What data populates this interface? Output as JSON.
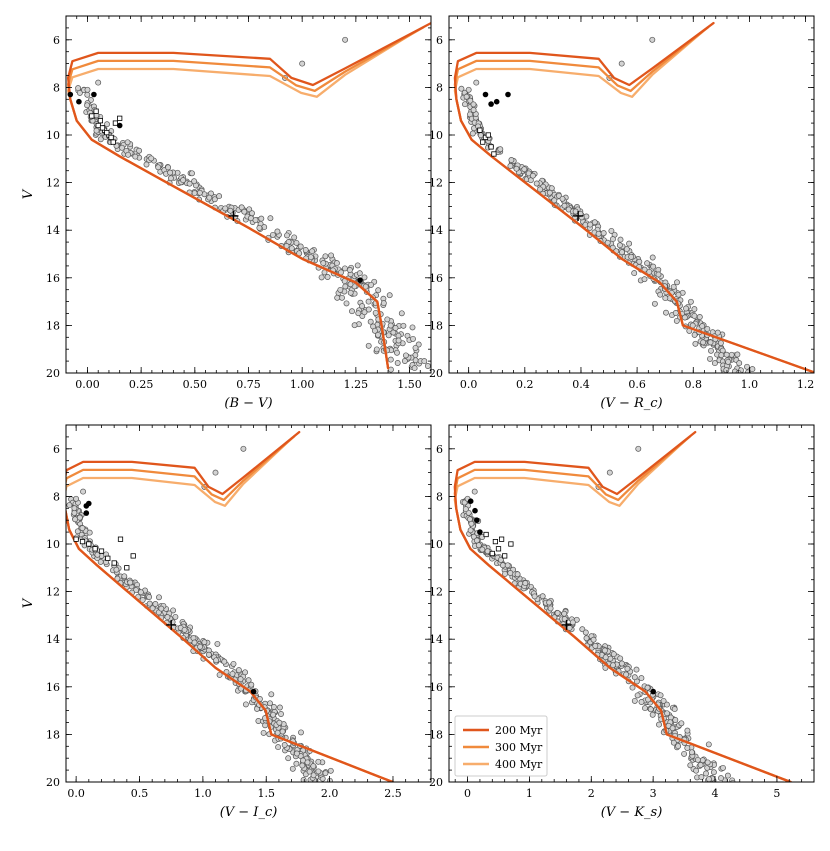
{
  "figure": {
    "colors": {
      "200": "#e0561c",
      "300": "#f08a3c",
      "400": "#f7ad6c"
    },
    "legend": [
      {
        "label": "200 Myr",
        "color": "#e0561c"
      },
      {
        "label": "300 Myr",
        "color": "#f08a3c"
      },
      {
        "label": "400 Myr",
        "color": "#f7ad6c"
      }
    ]
  },
  "chart_data": [
    {
      "type": "scatter",
      "xlabel": "(B − V)",
      "ylabel": "V",
      "xlim": [
        -0.1,
        1.6
      ],
      "ylim": [
        20,
        5
      ],
      "xticks": [
        "0.00",
        "0.25",
        "0.50",
        "0.75",
        "1.00",
        "1.25",
        "1.50"
      ],
      "xtick_values": [
        0,
        0.25,
        0.5,
        0.75,
        1.0,
        1.25,
        1.5
      ],
      "yticks": [
        "6",
        "8",
        "10",
        "12",
        "14",
        "16",
        "18",
        "20"
      ],
      "yend": 19.8,
      "ybend": 0.1,
      "xscale": 1.0,
      "squares": [
        [
          0.02,
          9.2
        ],
        [
          0.05,
          9.6
        ],
        [
          0.08,
          9.8
        ],
        [
          0.1,
          10.0
        ],
        [
          0.12,
          10.3
        ],
        [
          0.06,
          9.4
        ],
        [
          0.09,
          9.9
        ],
        [
          0.13,
          9.5
        ],
        [
          0.11,
          10.1
        ],
        [
          0.07,
          9.7
        ],
        [
          0.15,
          9.3
        ],
        [
          0.04,
          9.0
        ]
      ],
      "dots": [
        [
          -0.08,
          8.3
        ],
        [
          -0.04,
          8.6
        ],
        [
          0.03,
          8.3
        ],
        [
          0.15,
          9.6
        ],
        [
          1.27,
          16.1
        ]
      ],
      "plus": [
        0.68,
        13.4
      ]
    },
    {
      "type": "scatter",
      "xlabel": "(V − R_c)",
      "ylabel": "",
      "xlim": [
        -0.07,
        1.23
      ],
      "ylim": [
        20,
        5
      ],
      "xticks": [
        "0.0",
        "0.2",
        "0.4",
        "0.6",
        "0.8",
        "1.0",
        "1.2"
      ],
      "xtick_values": [
        0,
        0.2,
        0.4,
        0.6,
        0.8,
        1.0,
        1.2
      ],
      "yticks": [
        "6",
        "8",
        "10",
        "12",
        "14",
        "16",
        "18",
        "20"
      ],
      "yend": 20.0,
      "ybend": 0.0,
      "xscale": 0.545,
      "squares": [
        [
          0.04,
          9.8
        ],
        [
          0.06,
          10.1
        ],
        [
          0.08,
          10.5
        ],
        [
          0.09,
          10.8
        ],
        [
          0.05,
          10.3
        ],
        [
          0.07,
          10.0
        ]
      ],
      "dots": [
        [
          0.06,
          8.3
        ],
        [
          0.08,
          8.7
        ],
        [
          0.1,
          8.6
        ],
        [
          0.14,
          8.3
        ]
      ],
      "plus": [
        0.39,
        13.4
      ]
    },
    {
      "type": "scatter",
      "xlabel": "(V − I_c)",
      "ylabel": "V",
      "xlim": [
        -0.08,
        2.8
      ],
      "ylim": [
        20,
        5
      ],
      "xticks": [
        "0.0",
        "0.5",
        "1.0",
        "1.5",
        "2.0",
        "2.5"
      ],
      "xtick_values": [
        0,
        0.5,
        1.0,
        1.5,
        2.0,
        2.5
      ],
      "yticks": [
        "6",
        "8",
        "10",
        "12",
        "14",
        "16",
        "18",
        "20"
      ],
      "yend": 20.0,
      "ybend": 0.0,
      "xscale": 1.1,
      "squares": [
        [
          0.0,
          9.8
        ],
        [
          0.1,
          10.0
        ],
        [
          0.2,
          10.3
        ],
        [
          0.3,
          10.8
        ],
        [
          0.15,
          10.2
        ],
        [
          0.4,
          11.0
        ],
        [
          0.35,
          9.8
        ],
        [
          0.25,
          10.6
        ],
        [
          0.05,
          9.9
        ],
        [
          0.45,
          10.5
        ]
      ],
      "dots": [
        [
          0.08,
          8.4
        ],
        [
          0.1,
          8.3
        ],
        [
          0.08,
          8.7
        ],
        [
          1.4,
          16.2
        ]
      ],
      "plus": [
        0.75,
        13.4
      ]
    },
    {
      "type": "scatter",
      "xlabel": "(V − K_s)",
      "ylabel": "",
      "xlim": [
        -0.3,
        5.6
      ],
      "ylim": [
        20,
        5
      ],
      "xticks": [
        "0",
        "1",
        "2",
        "3",
        "4",
        "5"
      ],
      "xtick_values": [
        0,
        1,
        2,
        3,
        4,
        5
      ],
      "yticks": [
        "6",
        "8",
        "10",
        "12",
        "14",
        "16",
        "18",
        "20"
      ],
      "yend": 20.0,
      "ybend": 0.0,
      "xscale": 2.3,
      "squares": [
        [
          0.5,
          10.2
        ],
        [
          0.7,
          10.0
        ],
        [
          0.6,
          10.5
        ],
        [
          0.4,
          10.4
        ],
        [
          0.55,
          9.8
        ],
        [
          0.3,
          9.6
        ],
        [
          0.45,
          9.9
        ]
      ],
      "dots": [
        [
          0.05,
          8.2
        ],
        [
          0.15,
          9.0
        ],
        [
          0.2,
          9.5
        ],
        [
          0.12,
          8.6
        ],
        [
          3.0,
          16.2
        ]
      ],
      "plus": [
        1.6,
        13.4
      ]
    }
  ]
}
